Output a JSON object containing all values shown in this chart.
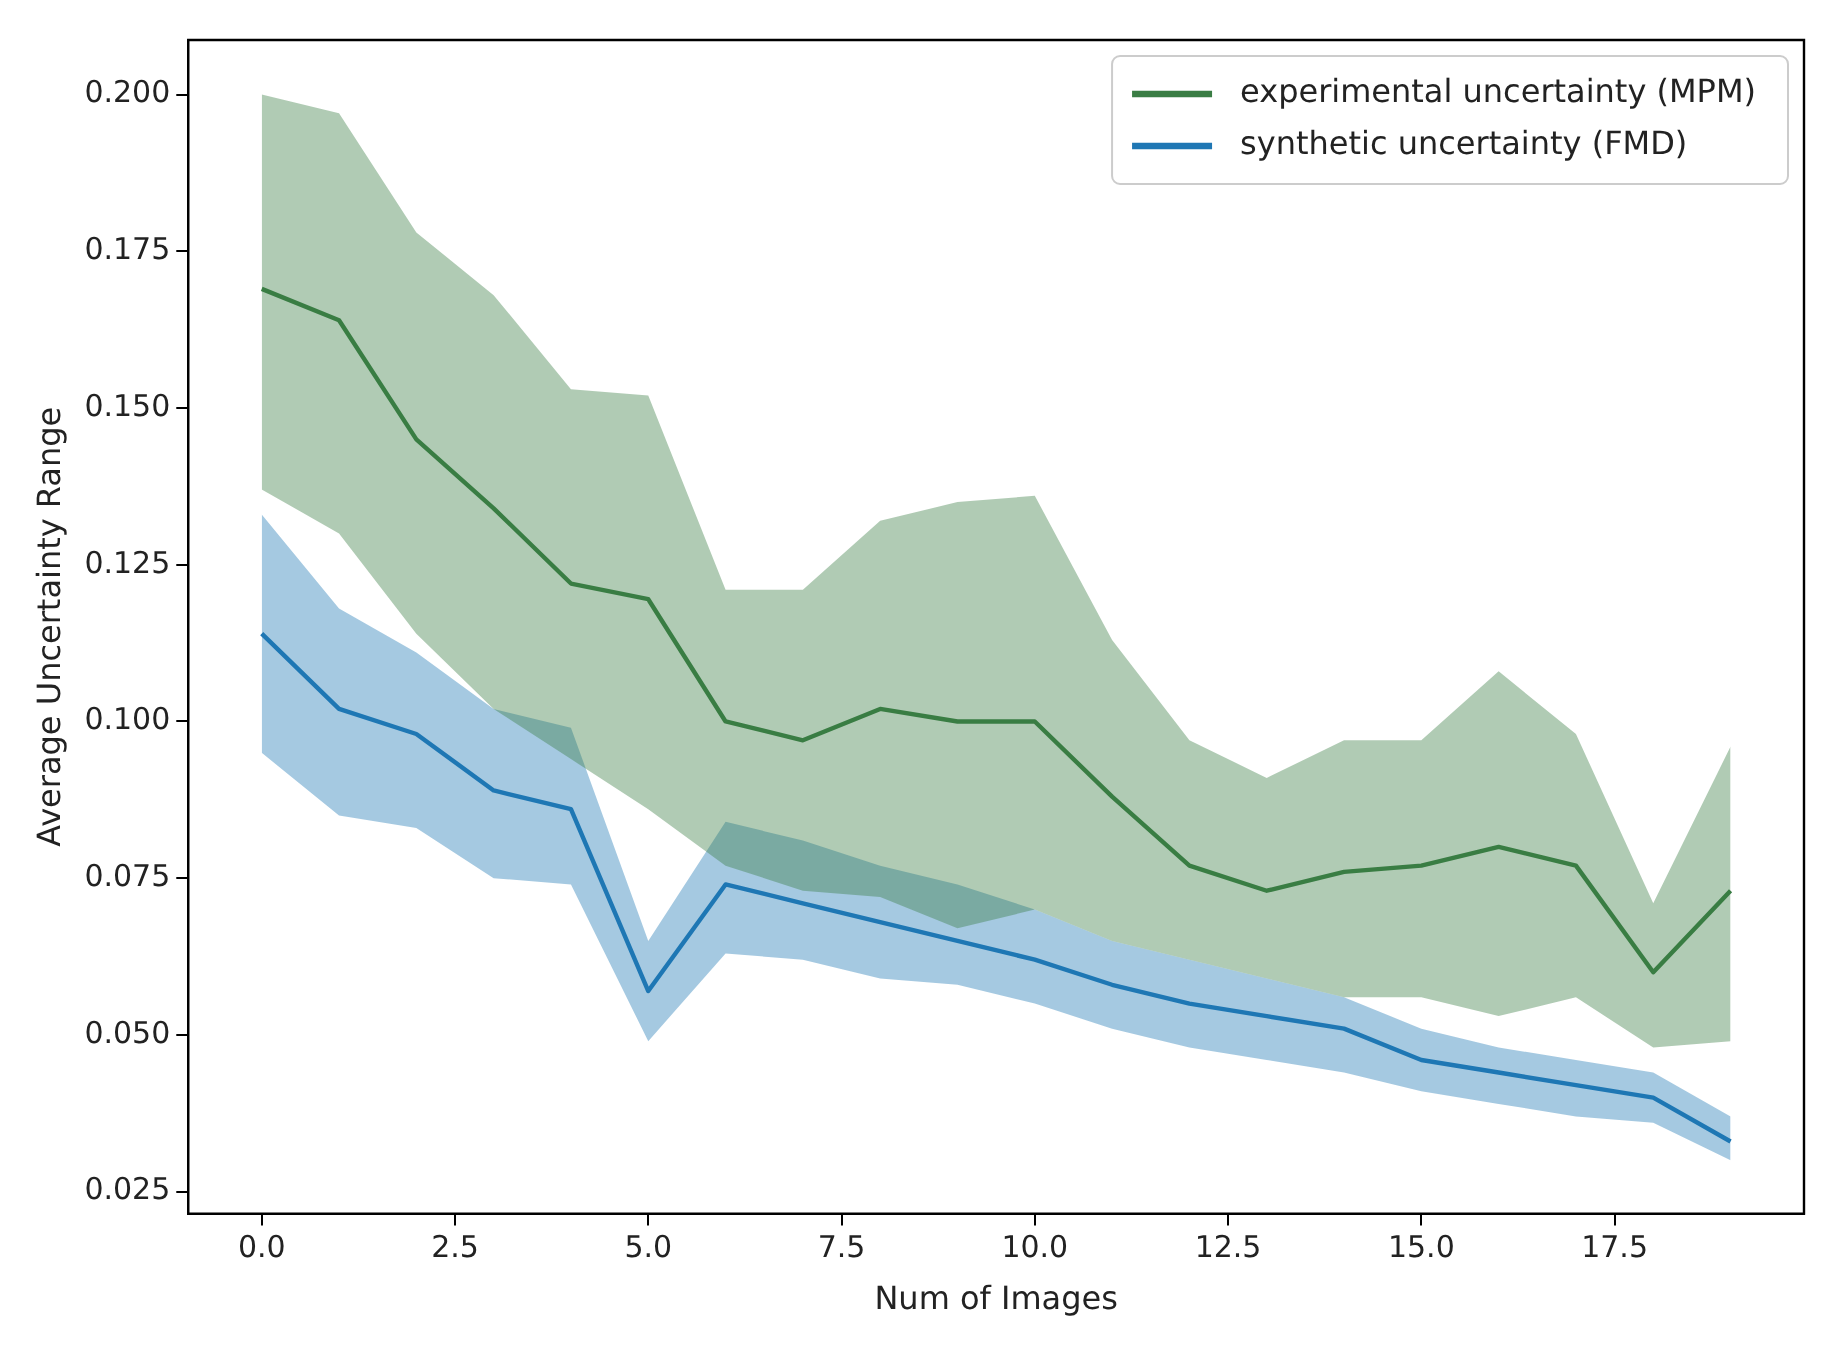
{
  "chart_data": {
    "type": "line",
    "xlabel": "Num of Images",
    "ylabel": "Average Uncertainty Range",
    "x": [
      0,
      1,
      2,
      3,
      4,
      5,
      6,
      7,
      8,
      9,
      10,
      11,
      12,
      13,
      14,
      15,
      16,
      17,
      18,
      19
    ],
    "series": [
      {
        "name": "experimental uncertainty (MPM)",
        "color": "#3a7d44",
        "values": [
          0.169,
          0.164,
          0.145,
          0.134,
          0.122,
          0.1195,
          0.1,
          0.097,
          0.102,
          0.1,
          0.1,
          0.088,
          0.077,
          0.073,
          0.076,
          0.077,
          0.08,
          0.077,
          0.06,
          0.073
        ],
        "lower": [
          0.137,
          0.13,
          0.114,
          0.102,
          0.094,
          0.086,
          0.077,
          0.073,
          0.072,
          0.067,
          0.07,
          0.065,
          0.062,
          0.059,
          0.056,
          0.056,
          0.053,
          0.056,
          0.048,
          0.049
        ],
        "upper": [
          0.2,
          0.197,
          0.178,
          0.168,
          0.153,
          0.152,
          0.121,
          0.121,
          0.132,
          0.135,
          0.136,
          0.113,
          0.097,
          0.091,
          0.097,
          0.097,
          0.108,
          0.098,
          0.071,
          0.096
        ]
      },
      {
        "name": "synthetic uncertainty (FMD)",
        "color": "#1f77b4",
        "values": [
          0.114,
          0.102,
          0.098,
          0.089,
          0.086,
          0.057,
          0.074,
          0.071,
          0.068,
          0.065,
          0.062,
          0.058,
          0.055,
          0.053,
          0.051,
          0.046,
          0.044,
          0.042,
          0.04,
          0.033
        ],
        "lower": [
          0.095,
          0.085,
          0.083,
          0.075,
          0.074,
          0.049,
          0.063,
          0.062,
          0.059,
          0.058,
          0.055,
          0.051,
          0.048,
          0.046,
          0.044,
          0.041,
          0.039,
          0.037,
          0.036,
          0.03
        ],
        "upper": [
          0.133,
          0.118,
          0.111,
          0.102,
          0.099,
          0.065,
          0.084,
          0.081,
          0.077,
          0.074,
          0.07,
          0.065,
          0.062,
          0.059,
          0.056,
          0.051,
          0.048,
          0.046,
          0.044,
          0.037
        ]
      }
    ],
    "xlim": [
      -0.95,
      19.95
    ],
    "xticks": [
      {
        "value": 0,
        "label": "0.0"
      },
      {
        "value": 2.5,
        "label": "2.5"
      },
      {
        "value": 5,
        "label": "5.0"
      },
      {
        "value": 7.5,
        "label": "7.5"
      },
      {
        "value": 10,
        "label": "10.0"
      },
      {
        "value": 12.5,
        "label": "12.5"
      },
      {
        "value": 15,
        "label": "15.0"
      },
      {
        "value": 17.5,
        "label": "17.5"
      }
    ],
    "ylim": [
      0.0215,
      0.2087
    ],
    "yticks": [
      {
        "value": 0.025,
        "label": "0.025"
      },
      {
        "value": 0.05,
        "label": "0.050"
      },
      {
        "value": 0.075,
        "label": "0.075"
      },
      {
        "value": 0.1,
        "label": "0.100"
      },
      {
        "value": 0.125,
        "label": "0.125"
      },
      {
        "value": 0.15,
        "label": "0.150"
      },
      {
        "value": 0.175,
        "label": "0.175"
      },
      {
        "value": 0.2,
        "label": "0.200"
      }
    ],
    "legend": "top right",
    "marker": "none",
    "line_style": "solid"
  }
}
